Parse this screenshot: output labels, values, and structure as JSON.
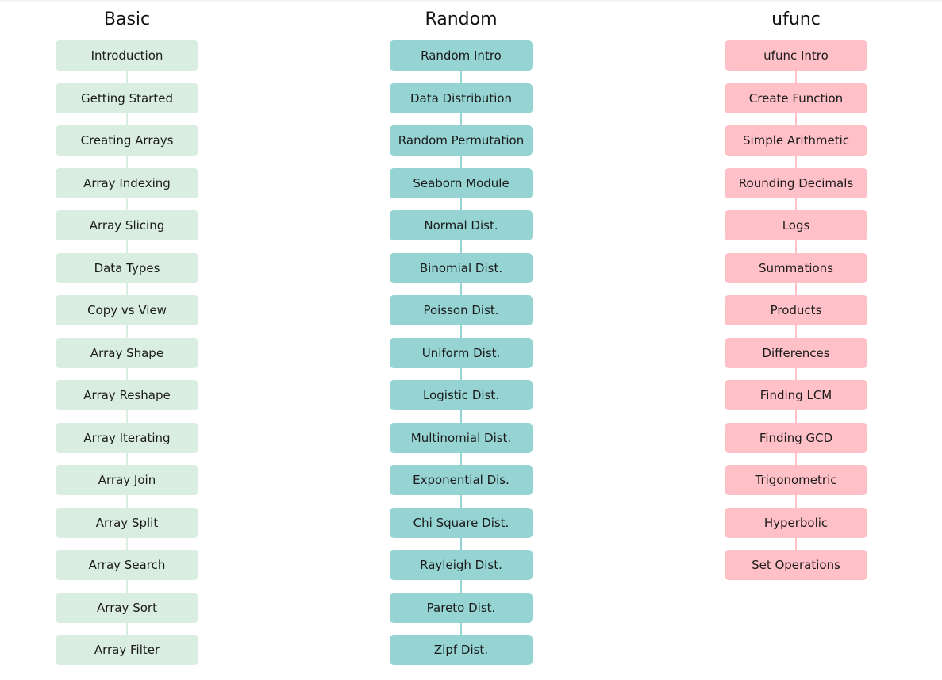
{
  "columns": [
    {
      "title": "Basic",
      "color": "#d9ede0",
      "line_color": "#d9ede0",
      "items": [
        "Introduction",
        "Getting Started",
        "Creating Arrays",
        "Array Indexing",
        "Array Slicing",
        "Data Types",
        "Copy vs View",
        "Array Shape",
        "Array Reshape",
        "Array Iterating",
        "Array Join",
        "Array Split",
        "Array Search",
        "Array Sort",
        "Array Filter"
      ]
    },
    {
      "title": "Random",
      "color": "#96d4d4",
      "line_color": "#96d4d4",
      "items": [
        "Random Intro",
        "Data Distribution",
        "Random Permutation",
        "Seaborn Module",
        "Normal Dist.",
        "Binomial Dist.",
        "Poisson Dist.",
        "Uniform Dist.",
        "Logistic Dist.",
        "Multinomial Dist.",
        "Exponential Dis.",
        "Chi Square Dist.",
        "Rayleigh Dist.",
        "Pareto Dist.",
        "Zipf Dist."
      ]
    },
    {
      "title": "ufunc",
      "color": "#ffc0c7",
      "line_color": "#ffc0c7",
      "items": [
        "ufunc Intro",
        "Create Function",
        "Simple Arithmetic",
        "Rounding Decimals",
        "Logs",
        "Summations",
        "Products",
        "Differences",
        "Finding LCM",
        "Finding GCD",
        "Trigonometric",
        "Hyperbolic",
        "Set Operations"
      ]
    }
  ]
}
